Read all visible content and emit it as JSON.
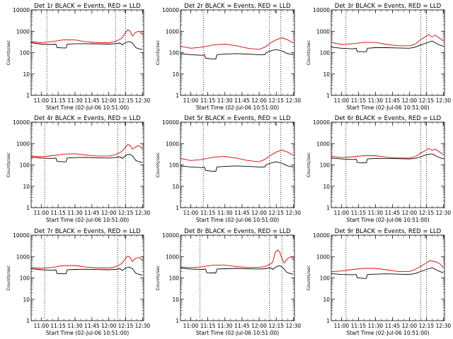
{
  "figure": {
    "colors": {
      "events": "#000000",
      "lld": "#e00000",
      "axes": "#000000",
      "background": "#ffffff"
    },
    "ylabel": "Counts/sec",
    "xlabel": "Start Time (02-Jul-06 10:51:00)",
    "xtick_labels": [
      "11:00",
      "11:15",
      "11:30",
      "11:45",
      "12:00",
      "12:15",
      "12:30"
    ],
    "ytick_labels": [
      "1",
      "10",
      "100",
      "1000",
      "10000"
    ],
    "marker": "└"
  },
  "chart_data": [
    {
      "type": "line",
      "title": "Det 1r BLACK = Events, RED = LLD",
      "scale": "log",
      "ylim": [
        1,
        10000
      ],
      "xlim": [
        "10:51",
        "12:31"
      ],
      "vlines": [
        "11:05",
        "12:06",
        "12:15"
      ],
      "series": [
        {
          "name": "Events",
          "x": [
            "10:51",
            "11:00",
            "11:10",
            "11:13",
            "11:14",
            "11:20",
            "11:22",
            "11:23",
            "11:30",
            "11:40",
            "11:50",
            "12:00",
            "12:05",
            "12:10",
            "12:12",
            "12:15",
            "12:18",
            "12:21",
            "12:24",
            "12:27",
            "12:30"
          ],
          "values": [
            290,
            250,
            240,
            250,
            170,
            165,
            165,
            250,
            260,
            260,
            255,
            250,
            260,
            280,
            230,
            300,
            330,
            280,
            170,
            150,
            140
          ]
        },
        {
          "name": "LLD",
          "x": [
            "10:51",
            "11:00",
            "11:10",
            "11:20",
            "11:30",
            "11:40",
            "11:50",
            "12:00",
            "12:05",
            "12:10",
            "12:12",
            "12:15",
            "12:17",
            "12:19",
            "12:21",
            "12:24",
            "12:27",
            "12:30"
          ],
          "values": [
            330,
            290,
            330,
            400,
            390,
            320,
            290,
            290,
            320,
            420,
            500,
            900,
            1200,
            1000,
            600,
            900,
            1000,
            700
          ]
        }
      ]
    },
    {
      "type": "line",
      "title": "Det 2r BLACK = Events, RED = LLD",
      "scale": "log",
      "ylim": [
        1,
        10000
      ],
      "xlim": [
        "10:51",
        "12:31"
      ],
      "vlines": [
        "11:11",
        "12:09",
        "12:19"
      ],
      "series": [
        {
          "name": "Events",
          "x": [
            "10:51",
            "11:00",
            "11:10",
            "11:12",
            "11:13",
            "11:20",
            "11:22",
            "11:23",
            "11:30",
            "11:40",
            "11:50",
            "12:00",
            "12:05",
            "12:06",
            "12:10",
            "12:15",
            "12:20",
            "12:25",
            "12:30"
          ],
          "values": [
            90,
            80,
            75,
            80,
            55,
            50,
            50,
            80,
            85,
            90,
            85,
            80,
            80,
            100,
            120,
            140,
            120,
            90,
            80
          ]
        },
        {
          "name": "LLD",
          "x": [
            "10:51",
            "11:00",
            "11:10",
            "11:20",
            "11:30",
            "11:40",
            "11:50",
            "12:00",
            "12:05",
            "12:10",
            "12:15",
            "12:20",
            "12:25",
            "12:30"
          ],
          "values": [
            200,
            160,
            180,
            230,
            250,
            210,
            160,
            140,
            180,
            280,
            400,
            500,
            400,
            280
          ]
        }
      ]
    },
    {
      "type": "line",
      "title": "Det 3r BLACK = Events, RED = LLD",
      "scale": "log",
      "ylim": [
        1,
        10000
      ],
      "xlim": [
        "10:51",
        "12:31"
      ],
      "vlines": [
        "11:04",
        "12:10",
        "12:15"
      ],
      "series": [
        {
          "name": "Events",
          "x": [
            "10:51",
            "11:00",
            "11:10",
            "11:13",
            "11:14",
            "11:20",
            "11:22",
            "11:23",
            "11:30",
            "11:40",
            "11:50",
            "12:00",
            "12:05",
            "12:10",
            "12:15",
            "12:20",
            "12:25",
            "12:30"
          ],
          "values": [
            180,
            160,
            150,
            160,
            110,
            110,
            110,
            160,
            170,
            170,
            165,
            160,
            180,
            230,
            280,
            350,
            250,
            200
          ]
        },
        {
          "name": "LLD",
          "x": [
            "10:51",
            "11:00",
            "11:10",
            "11:20",
            "11:30",
            "11:40",
            "11:50",
            "12:00",
            "12:05",
            "12:10",
            "12:15",
            "12:17",
            "12:20",
            "12:23",
            "12:26",
            "12:30"
          ],
          "values": [
            300,
            240,
            260,
            300,
            300,
            240,
            210,
            210,
            250,
            400,
            600,
            700,
            550,
            650,
            500,
            350
          ]
        }
      ]
    },
    {
      "type": "line",
      "title": "Det 4r BLACK = Events, RED = LLD",
      "scale": "log",
      "ylim": [
        1,
        10000
      ],
      "xlim": [
        "10:51",
        "12:31"
      ],
      "vlines": [
        "11:03",
        "12:08",
        "12:15"
      ],
      "series": [
        {
          "name": "Events",
          "x": [
            "10:51",
            "11:00",
            "11:10",
            "11:13",
            "11:14",
            "11:20",
            "11:22",
            "11:23",
            "11:30",
            "11:40",
            "11:50",
            "12:00",
            "12:05",
            "12:10",
            "12:12",
            "12:15",
            "12:18",
            "12:21",
            "12:24",
            "12:27",
            "12:30"
          ],
          "values": [
            230,
            210,
            200,
            210,
            145,
            140,
            140,
            210,
            220,
            225,
            215,
            210,
            220,
            240,
            200,
            280,
            320,
            270,
            160,
            140,
            130
          ]
        },
        {
          "name": "LLD",
          "x": [
            "10:51",
            "11:00",
            "11:10",
            "11:20",
            "11:30",
            "11:40",
            "11:50",
            "12:00",
            "12:05",
            "12:10",
            "12:12",
            "12:15",
            "12:17",
            "12:19",
            "12:21",
            "12:24",
            "12:27",
            "12:30"
          ],
          "values": [
            260,
            240,
            270,
            320,
            330,
            290,
            260,
            260,
            290,
            380,
            450,
            700,
            900,
            800,
            550,
            700,
            800,
            550
          ]
        }
      ]
    },
    {
      "type": "line",
      "title": "Det 5r BLACK = Events, RED = LLD",
      "scale": "log",
      "ylim": [
        1,
        10000
      ],
      "xlim": [
        "10:51",
        "12:31"
      ],
      "vlines": [
        "11:11",
        "12:09",
        "12:19"
      ],
      "series": [
        {
          "name": "Events",
          "x": [
            "10:51",
            "11:00",
            "11:10",
            "11:12",
            "11:13",
            "11:20",
            "11:22",
            "11:23",
            "11:30",
            "11:40",
            "11:50",
            "12:00",
            "12:05",
            "12:06",
            "12:10",
            "12:15",
            "12:20",
            "12:25",
            "12:30"
          ],
          "values": [
            90,
            80,
            75,
            80,
            55,
            50,
            50,
            80,
            85,
            90,
            85,
            80,
            80,
            100,
            120,
            140,
            120,
            90,
            80
          ]
        },
        {
          "name": "LLD",
          "x": [
            "10:51",
            "11:00",
            "11:10",
            "11:20",
            "11:30",
            "11:40",
            "11:50",
            "12:00",
            "12:05",
            "12:10",
            "12:15",
            "12:20",
            "12:25",
            "12:30"
          ],
          "values": [
            200,
            160,
            180,
            230,
            250,
            210,
            160,
            140,
            180,
            280,
            400,
            500,
            400,
            280
          ]
        }
      ]
    },
    {
      "type": "line",
      "title": "Det 6r BLACK = Events, RED = LLD",
      "scale": "log",
      "ylim": [
        1,
        10000
      ],
      "xlim": [
        "10:51",
        "12:31"
      ],
      "vlines": [
        "11:04",
        "12:10",
        "12:15"
      ],
      "series": [
        {
          "name": "Events",
          "x": [
            "10:51",
            "11:00",
            "11:10",
            "11:13",
            "11:14",
            "11:20",
            "11:22",
            "11:23",
            "11:30",
            "11:40",
            "11:50",
            "12:00",
            "12:05",
            "12:10",
            "12:15",
            "12:20",
            "12:25",
            "12:30"
          ],
          "values": [
            210,
            190,
            180,
            190,
            130,
            125,
            125,
            190,
            200,
            200,
            195,
            190,
            200,
            240,
            300,
            330,
            240,
            190
          ]
        },
        {
          "name": "LLD",
          "x": [
            "10:51",
            "11:00",
            "11:10",
            "11:20",
            "11:30",
            "11:40",
            "11:50",
            "12:00",
            "12:05",
            "12:10",
            "12:15",
            "12:17",
            "12:20",
            "12:23",
            "12:26",
            "12:30"
          ],
          "values": [
            250,
            220,
            240,
            270,
            270,
            230,
            210,
            210,
            240,
            360,
            500,
            600,
            480,
            550,
            420,
            300
          ]
        }
      ]
    },
    {
      "type": "line",
      "title": "Det 7r BLACK = Events, RED = LLD",
      "scale": "log",
      "ylim": [
        1,
        10000
      ],
      "xlim": [
        "10:51",
        "12:31"
      ],
      "vlines": [
        "11:03",
        "12:08",
        "12:15"
      ],
      "series": [
        {
          "name": "Events",
          "x": [
            "10:51",
            "11:00",
            "11:10",
            "11:13",
            "11:14",
            "11:20",
            "11:22",
            "11:23",
            "11:30",
            "11:40",
            "11:50",
            "12:00",
            "12:05",
            "12:10",
            "12:12",
            "12:15",
            "12:18",
            "12:21",
            "12:24",
            "12:27",
            "12:30"
          ],
          "values": [
            270,
            240,
            230,
            240,
            160,
            155,
            155,
            240,
            250,
            255,
            245,
            240,
            250,
            270,
            220,
            290,
            320,
            270,
            165,
            145,
            135
          ]
        },
        {
          "name": "LLD",
          "x": [
            "10:51",
            "11:00",
            "11:10",
            "11:20",
            "11:30",
            "11:40",
            "11:50",
            "12:00",
            "12:05",
            "12:10",
            "12:12",
            "12:15",
            "12:17",
            "12:19",
            "12:21",
            "12:24",
            "12:27",
            "12:30"
          ],
          "values": [
            310,
            280,
            310,
            380,
            380,
            320,
            290,
            290,
            320,
            420,
            500,
            850,
            1050,
            900,
            600,
            850,
            900,
            650
          ]
        }
      ]
    },
    {
      "type": "line",
      "title": "Det 8r BLACK = Events, RED = LLD",
      "scale": "log",
      "ylim": [
        1,
        10000
      ],
      "xlim": [
        "10:51",
        "12:31"
      ],
      "vlines": [
        "11:08",
        "12:09",
        "12:20"
      ],
      "series": [
        {
          "name": "Events",
          "x": [
            "10:51",
            "11:00",
            "11:10",
            "11:13",
            "11:14",
            "11:20",
            "11:22",
            "11:23",
            "11:30",
            "11:40",
            "11:50",
            "12:00",
            "12:05",
            "12:10",
            "12:12",
            "12:15",
            "12:18",
            "12:21",
            "12:24",
            "12:27",
            "12:30"
          ],
          "values": [
            290,
            260,
            250,
            260,
            175,
            170,
            170,
            260,
            270,
            280,
            270,
            260,
            270,
            300,
            250,
            330,
            380,
            300,
            190,
            160,
            150
          ]
        },
        {
          "name": "LLD",
          "x": [
            "10:51",
            "11:00",
            "11:10",
            "11:20",
            "11:30",
            "11:40",
            "11:50",
            "12:00",
            "12:05",
            "12:10",
            "12:12",
            "12:14",
            "12:16",
            "12:18",
            "12:20",
            "12:22",
            "12:25",
            "12:28",
            "12:30"
          ],
          "values": [
            330,
            300,
            330,
            400,
            400,
            340,
            310,
            310,
            340,
            450,
            550,
            1500,
            2000,
            1700,
            800,
            500,
            800,
            1000,
            700
          ]
        }
      ]
    },
    {
      "type": "line",
      "title": "Det 9r BLACK = Events, RED = LLD",
      "scale": "log",
      "ylim": [
        1,
        10000
      ],
      "xlim": [
        "10:51",
        "12:31"
      ],
      "vlines": [
        "11:04",
        "12:10",
        "12:15"
      ],
      "series": [
        {
          "name": "Events",
          "x": [
            "10:51",
            "11:00",
            "11:10",
            "11:13",
            "11:14",
            "11:20",
            "11:22",
            "11:23",
            "11:30",
            "11:40",
            "11:50",
            "12:00",
            "12:05",
            "12:10",
            "12:15",
            "12:20",
            "12:25",
            "12:30"
          ],
          "values": [
            160,
            145,
            140,
            145,
            100,
            95,
            95,
            145,
            150,
            155,
            150,
            145,
            160,
            200,
            250,
            300,
            220,
            170
          ]
        },
        {
          "name": "LLD",
          "x": [
            "10:51",
            "11:00",
            "11:10",
            "11:20",
            "11:30",
            "11:40",
            "11:50",
            "12:00",
            "12:05",
            "12:10",
            "12:15",
            "12:18",
            "12:21",
            "12:24",
            "12:27",
            "12:30"
          ],
          "values": [
            200,
            210,
            250,
            280,
            280,
            240,
            200,
            200,
            250,
            350,
            500,
            650,
            600,
            550,
            450,
            300
          ]
        }
      ]
    }
  ]
}
